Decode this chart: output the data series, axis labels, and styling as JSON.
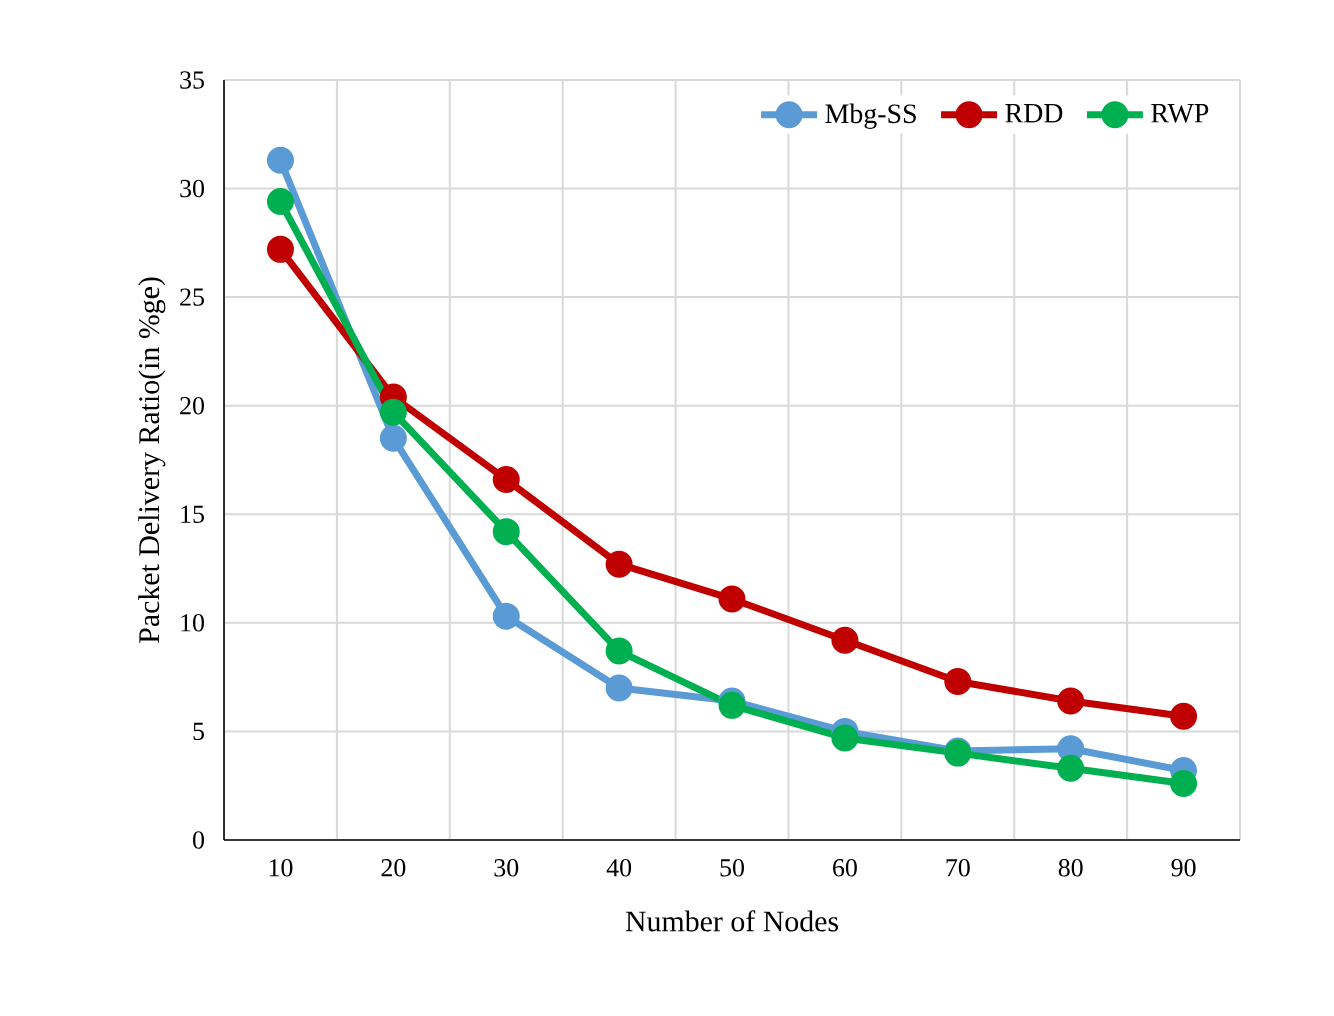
{
  "chart_data": {
    "type": "line",
    "xlabel": "Number of Nodes",
    "ylabel": "Packet Delivery Ratio(in %ge)",
    "categories": [
      "10",
      "20",
      "30",
      "40",
      "50",
      "60",
      "70",
      "80",
      "90"
    ],
    "series": [
      {
        "name": "Mbg-SS",
        "color": "#5b9bd5",
        "values": [
          31.3,
          18.5,
          10.3,
          7.0,
          6.4,
          5.0,
          4.1,
          4.2,
          3.2
        ]
      },
      {
        "name": "RDD",
        "color": "#c00000",
        "values": [
          27.2,
          20.4,
          16.6,
          12.7,
          11.1,
          9.2,
          7.3,
          6.4,
          5.7
        ]
      },
      {
        "name": "RWP",
        "color": "#00b050",
        "values": [
          29.4,
          19.7,
          14.2,
          8.7,
          6.2,
          4.7,
          4.0,
          3.3,
          2.6
        ]
      }
    ],
    "ylim": [
      0,
      35
    ],
    "yticks": [
      0,
      5,
      10,
      15,
      20,
      25,
      30,
      35
    ],
    "grid": true,
    "legend": "top right",
    "marker": "circle",
    "line_style": "solid"
  }
}
